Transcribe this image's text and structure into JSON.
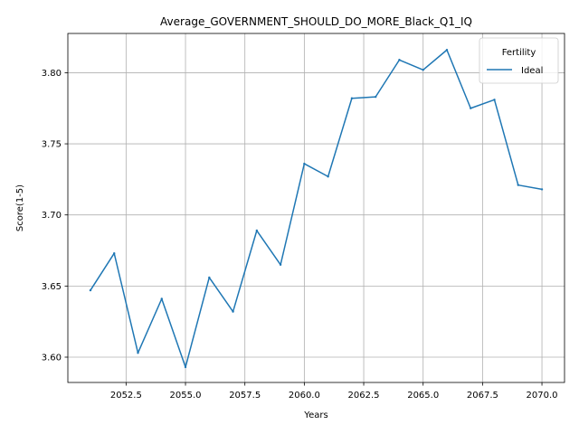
{
  "chart_data": {
    "type": "line",
    "title": "Average_GOVERNMENT_SHOULD_DO_MORE_Black_Q1_IQ",
    "xlabel": "Years",
    "ylabel": "Score(1-5)",
    "x": [
      2051,
      2052,
      2053,
      2054,
      2055,
      2056,
      2057,
      2058,
      2059,
      2060,
      2061,
      2062,
      2063,
      2064,
      2065,
      2066,
      2067,
      2068,
      2069,
      2070
    ],
    "series": [
      {
        "name": "Ideal",
        "color": "#1f77b4",
        "values": [
          3.647,
          3.673,
          3.603,
          3.641,
          3.593,
          3.656,
          3.632,
          3.689,
          3.665,
          3.736,
          3.727,
          3.782,
          3.783,
          3.809,
          3.802,
          3.816,
          3.775,
          3.781,
          3.721,
          3.718
        ]
      }
    ],
    "xlim": [
      2050.05,
      2070.95
    ],
    "ylim": [
      3.5822,
      3.8276
    ],
    "xticks": [
      2052.5,
      2055.0,
      2057.5,
      2060.0,
      2062.5,
      2065.0,
      2067.5,
      2070.0
    ],
    "xtick_labels": [
      "2052.5",
      "2055.0",
      "2057.5",
      "2060.0",
      "2062.5",
      "2065.0",
      "2067.5",
      "2070.0"
    ],
    "yticks": [
      3.6,
      3.65,
      3.7,
      3.75,
      3.8
    ],
    "ytick_labels": [
      "3.60",
      "3.65",
      "3.70",
      "3.75",
      "3.80"
    ],
    "grid": true,
    "legend": {
      "title": "Fertility",
      "placement": "top-right"
    }
  }
}
